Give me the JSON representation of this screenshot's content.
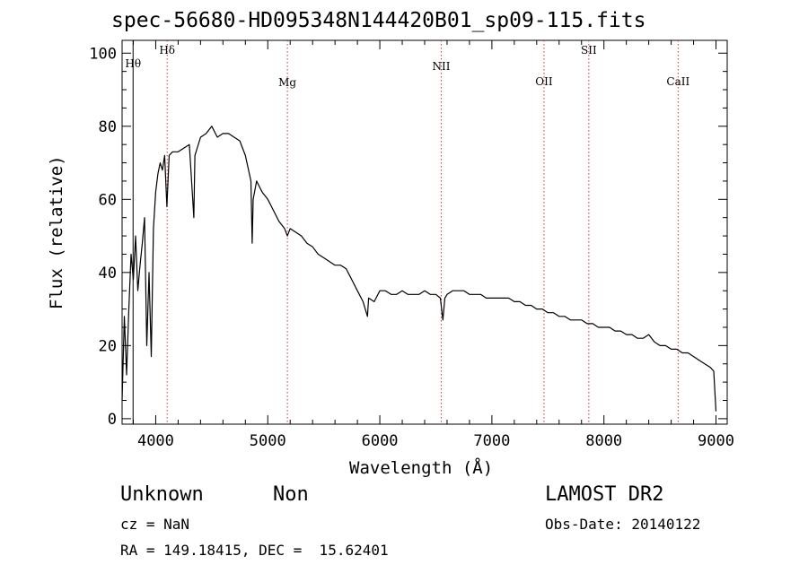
{
  "chart_data": {
    "type": "line",
    "title": "spec-56680-HD095348N144420B01_sp09-115.fits",
    "xlabel": "Wavelength (Å)",
    "ylabel": "Flux (relative)",
    "xlim": [
      3700,
      9100
    ],
    "ylim": [
      -1.5,
      103.5
    ],
    "xticks": [
      4000,
      5000,
      6000,
      7000,
      8000,
      9000
    ],
    "yticks": [
      0,
      20,
      40,
      60,
      80,
      100
    ],
    "grid": false,
    "line_color": "#000000",
    "marker_color": "#cc3333",
    "lines": [
      {
        "label": "Hθ",
        "x": 3798
      },
      {
        "label": "Hδ",
        "x": 4102
      },
      {
        "label": "Mg",
        "x": 5175
      },
      {
        "label": "NII",
        "x": 6548
      },
      {
        "label": "OII",
        "x": 7465
      },
      {
        "label": "SII",
        "x": 7865
      },
      {
        "label": "CaII",
        "x": 8662
      }
    ],
    "series": [
      {
        "x": [
          3700,
          3720,
          3740,
          3760,
          3780,
          3800,
          3820,
          3840,
          3860,
          3880,
          3900,
          3920,
          3940,
          3960,
          3980,
          4000,
          4020,
          4040,
          4060,
          4080,
          4100,
          4120,
          4150,
          4200,
          4250,
          4300,
          4340,
          4350,
          4400,
          4450,
          4500,
          4550,
          4600,
          4650,
          4700,
          4750,
          4800,
          4850,
          4861,
          4870,
          4900,
          4950,
          5000,
          5050,
          5100,
          5150,
          5175,
          5200,
          5250,
          5300,
          5350,
          5400,
          5450,
          5500,
          5550,
          5600,
          5650,
          5700,
          5750,
          5800,
          5850,
          5890,
          5900,
          5950,
          6000,
          6050,
          6100,
          6150,
          6200,
          6250,
          6300,
          6350,
          6400,
          6450,
          6500,
          6540,
          6563,
          6580,
          6600,
          6650,
          6700,
          6750,
          6800,
          6850,
          6900,
          6950,
          7000,
          7050,
          7100,
          7150,
          7200,
          7250,
          7300,
          7350,
          7400,
          7450,
          7500,
          7550,
          7600,
          7650,
          7700,
          7750,
          7800,
          7850,
          7900,
          7950,
          8000,
          8050,
          8100,
          8150,
          8200,
          8250,
          8300,
          8350,
          8400,
          8450,
          8500,
          8550,
          8600,
          8650,
          8700,
          8750,
          8800,
          8850,
          8900,
          8950,
          8980,
          9000
        ],
        "y": [
          5,
          28,
          12,
          30,
          45,
          38,
          50,
          35,
          42,
          48,
          55,
          20,
          40,
          17,
          52,
          62,
          67,
          70,
          68,
          72,
          58,
          72,
          73,
          73,
          74,
          75,
          55,
          72,
          77,
          78,
          80,
          77,
          78,
          78,
          77,
          76,
          72,
          65,
          48,
          60,
          65,
          62,
          60,
          57,
          54,
          52,
          50,
          52,
          51,
          50,
          48,
          47,
          45,
          44,
          43,
          42,
          42,
          41,
          38,
          35,
          32,
          28,
          33,
          32,
          35,
          35,
          34,
          34,
          35,
          34,
          34,
          34,
          35,
          34,
          34,
          33,
          27,
          33,
          34,
          35,
          35,
          35,
          34,
          34,
          34,
          33,
          33,
          33,
          33,
          33,
          32,
          32,
          31,
          31,
          30,
          30,
          29,
          29,
          28,
          28,
          27,
          27,
          27,
          26,
          26,
          25,
          25,
          25,
          24,
          24,
          23,
          23,
          22,
          22,
          23,
          21,
          20,
          20,
          19,
          19,
          18,
          18,
          17,
          16,
          15,
          14,
          13,
          2
        ]
      }
    ]
  },
  "info": {
    "object": "Unknown",
    "object_class": "Non",
    "survey": "LAMOST DR2",
    "cz": "cz = NaN",
    "obs_date": "Obs-Date: 20140122",
    "coords": "RA = 149.18415, DEC =  15.62401"
  }
}
